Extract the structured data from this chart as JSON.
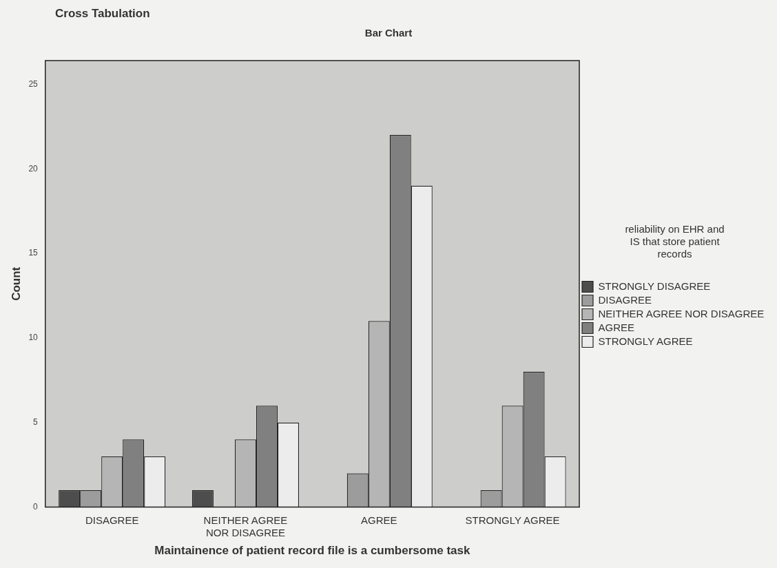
{
  "chart_data": {
    "type": "bar",
    "title": "Bar Chart",
    "annotations": [
      "Cross Tabulation"
    ],
    "xlabel": "Maintainence of patient record file is a cumbersome task",
    "ylabel": "Count",
    "legend_title": "reliability on EHR and IS that store patient records",
    "legend": "right",
    "grid": false,
    "categories": [
      "DISAGREE",
      "NEITHER AGREE NOR DISAGREE",
      "AGREE",
      "STRONGLY AGREE"
    ],
    "ylim": [
      0,
      26.4
    ],
    "yticks": [
      0,
      5,
      10,
      15,
      20,
      25
    ],
    "series": [
      {
        "name": "STRONGLY DISAGREE",
        "color": "#4d4d4d",
        "values": [
          1,
          1,
          0,
          0
        ]
      },
      {
        "name": "DISAGREE",
        "color": "#9c9c9c",
        "values": [
          1,
          0,
          2,
          1
        ]
      },
      {
        "name": "NEITHER AGREE NOR DISAGREE",
        "color": "#b5b5b5",
        "values": [
          3,
          4,
          11,
          6
        ]
      },
      {
        "name": "AGREE",
        "color": "#808080",
        "values": [
          4,
          6,
          22,
          8
        ]
      },
      {
        "name": "STRONGLY AGREE",
        "color": "#ececec",
        "values": [
          3,
          5,
          19,
          3
        ]
      }
    ]
  }
}
